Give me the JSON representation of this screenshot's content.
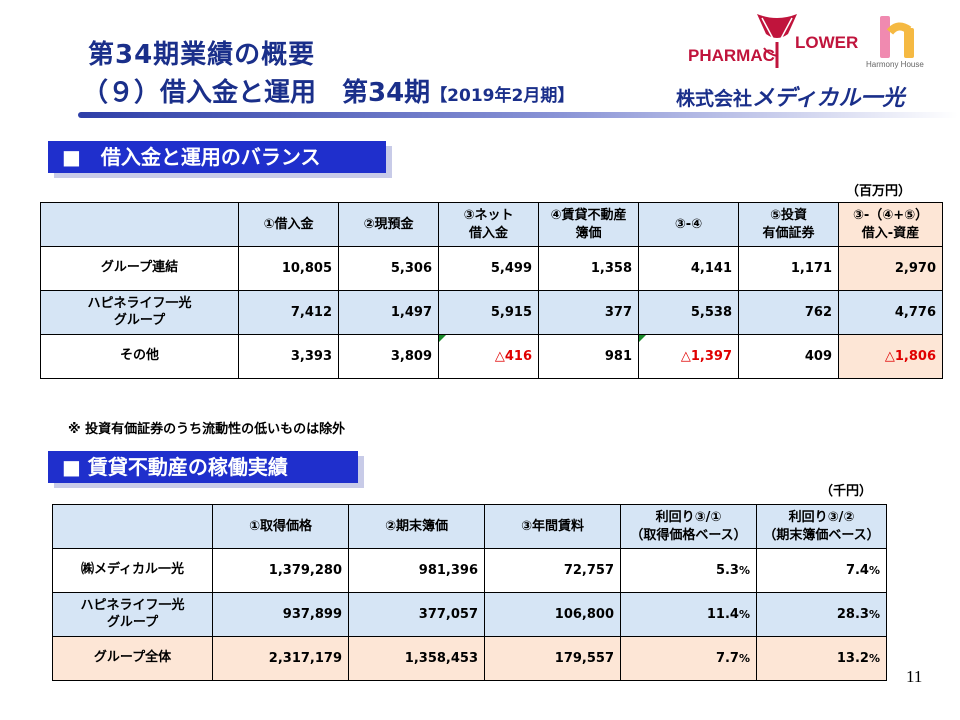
{
  "header": {
    "title_line1": "第34期業績の概要",
    "title_line2_main": "（９）借入金と運用　第34期",
    "title_line2_period": "【2019年2月期】",
    "logo_pharmac": "PHARMAC",
    "logo_flower": "LOWER",
    "logo_harmony": "Harmony House",
    "company_prefix": "株式会社",
    "company_name": "メディカル一光"
  },
  "section1": {
    "heading": "■　借入金と運用のバランス",
    "unit": "（百万円）",
    "columns": [
      "①借入金",
      "②現預金",
      "③ネット\n借入金",
      "④賃貸不動産\n簿価",
      "③-④",
      "⑤投資\n有価証券",
      "③-（④+⑤）\n借入-資産"
    ],
    "rows": [
      {
        "label": "グループ連結",
        "values": [
          "10,805",
          "5,306",
          "5,499",
          "1,358",
          "4,141",
          "1,171",
          "2,970"
        ]
      },
      {
        "label": "ハピネライフ一光\nグループ",
        "values": [
          "7,412",
          "1,497",
          "5,915",
          "377",
          "5,538",
          "762",
          "4,776"
        ]
      },
      {
        "label": "その他",
        "values": [
          "3,393",
          "3,809",
          "△416",
          "981",
          "△1,397",
          "409",
          "△1,806"
        ]
      }
    ],
    "note": "※ 投資有価証券のうち流動性の低いものは除外"
  },
  "section2": {
    "heading": "■ 賃貸不動産の稼働実績",
    "unit": "（千円）",
    "columns": [
      "①取得価格",
      "②期末簿価",
      "③年間賃料",
      "利回り③/①\n（取得価格ベース）",
      "利回り③/②\n（期末簿価ベース）"
    ],
    "rows": [
      {
        "label": "㈱メディカル一光",
        "values": [
          "1,379,280",
          "981,396",
          "72,757",
          "5.3",
          "7.4"
        ]
      },
      {
        "label": "ハピネライフ一光\nグループ",
        "values": [
          "937,899",
          "377,057",
          "106,800",
          "11.4",
          "28.3"
        ]
      }
    ],
    "total": {
      "label": "グループ全体",
      "values": [
        "2,317,179",
        "1,358,453",
        "179,557",
        "7.7",
        "13.2"
      ]
    },
    "pct_sign": "%"
  },
  "page_number": "11"
}
